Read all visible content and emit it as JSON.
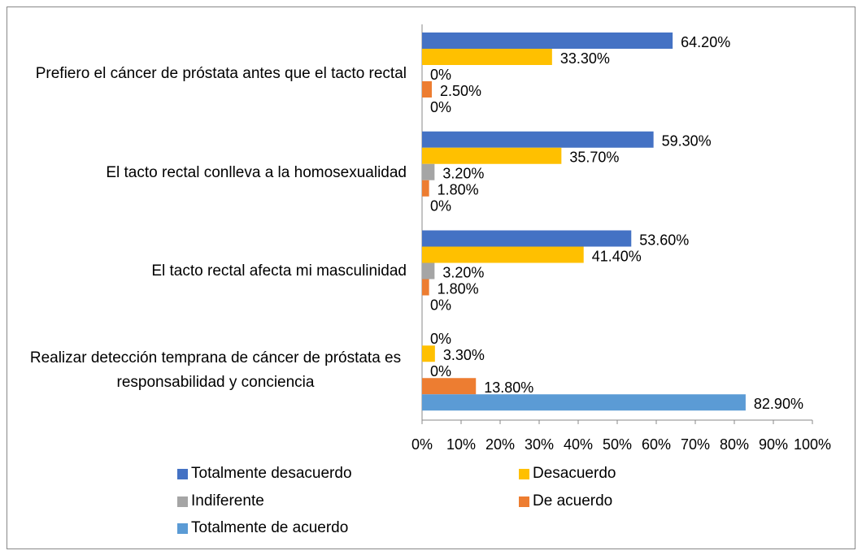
{
  "chart_data": {
    "type": "hbar",
    "categories": [
      "Prefiero el cáncer de próstata antes que el tacto rectal",
      "El tacto rectal conlleva a la homosexualidad",
      "El tacto rectal afecta mi masculinidad",
      "Realizar detección temprana de cáncer de próstata es responsabilidad y conciencia"
    ],
    "series": [
      {
        "name": "Totalmente desacuerdo",
        "color": "#4472c4",
        "values": [
          64.2,
          59.3,
          53.6,
          0
        ],
        "value_labels": [
          "64.20%",
          "59.30%",
          "53.60%",
          "0%"
        ]
      },
      {
        "name": "Desacuerdo",
        "color": "#ffc000",
        "values": [
          33.3,
          35.7,
          41.4,
          3.3
        ],
        "value_labels": [
          "33.30%",
          "35.70%",
          "41.40%",
          "3.30%"
        ]
      },
      {
        "name": "Indiferente",
        "color": "#a5a5a5",
        "values": [
          0,
          3.2,
          3.2,
          0
        ],
        "value_labels": [
          "0%",
          "3.20%",
          "3.20%",
          "0%"
        ]
      },
      {
        "name": "De acuerdo",
        "color": "#ed7d31",
        "values": [
          2.5,
          1.8,
          1.8,
          13.8
        ],
        "value_labels": [
          "2.50%",
          "1.80%",
          "1.80%",
          "13.80%"
        ]
      },
      {
        "name": "Totalmente de acuerdo",
        "color": "#5b9bd5",
        "values": [
          0,
          0,
          0,
          82.9
        ],
        "value_labels": [
          "0%",
          "0%",
          "0%",
          "82.90%"
        ]
      }
    ],
    "xlim": [
      0,
      100
    ],
    "xticks": [
      {
        "value": 0,
        "label": "0%"
      },
      {
        "value": 10,
        "label": "10%"
      },
      {
        "value": 20,
        "label": "20%"
      },
      {
        "value": 30,
        "label": "30%"
      },
      {
        "value": 40,
        "label": "40%"
      },
      {
        "value": 50,
        "label": "50%"
      },
      {
        "value": 60,
        "label": "60%"
      },
      {
        "value": 70,
        "label": "70%"
      },
      {
        "value": 80,
        "label": "80%"
      },
      {
        "value": 90,
        "label": "90%"
      },
      {
        "value": 100,
        "label": "100%"
      }
    ],
    "legend": "bottom"
  }
}
